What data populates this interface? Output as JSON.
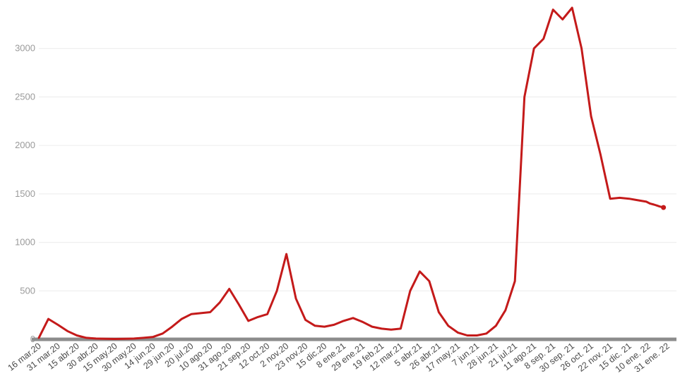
{
  "chart_data": {
    "type": "line",
    "title": "",
    "xlabel": "",
    "ylabel": "",
    "ylim": [
      0,
      3500
    ],
    "yticks": [
      0,
      500,
      1000,
      1500,
      2000,
      2500,
      3000
    ],
    "grid": true,
    "legend": "none",
    "x_tick_labels": [
      "16 mar.20",
      "31 mar.20",
      "15 abr.20",
      "30 abr.20",
      "15 may.20",
      "30 may.20",
      "14 jun.20",
      "29 jun.20",
      "20 jul.20",
      "10 ago.20",
      "31 ago.20",
      "21 sep.20",
      "12 oct.20",
      "2 nov.20",
      "23 nov.20",
      "15 dic.20",
      "8 ene.21",
      "29 ene.21",
      "19 feb.21",
      "12 mar.21",
      "5 abr.21",
      "26 abr.21",
      "17 may.21",
      "7 jun.21",
      "28 jun.21",
      "21 jul.21",
      "11 ago.21",
      "8 sep. 21",
      "30 sep. 21",
      "26 oct. 21",
      "22 nov. 21",
      "15 dic. 21",
      "10 ene. 22",
      "31 ene. 22"
    ],
    "series": [
      {
        "color": "#c41a1a",
        "x": [
          0,
          0.5,
          1,
          1.5,
          2,
          2.5,
          3,
          3.5,
          4,
          4.5,
          5,
          5.5,
          6,
          6.5,
          7,
          7.5,
          8,
          8.5,
          9,
          9.5,
          10,
          10.5,
          11,
          11.5,
          12,
          12.5,
          13,
          13.5,
          14,
          14.5,
          15,
          15.5,
          16,
          16.5,
          17,
          17.5,
          18,
          18.5,
          19,
          19.5,
          20,
          20.5,
          21,
          21.5,
          22,
          22.5,
          23,
          23.5,
          24,
          24.5,
          25,
          25.5,
          26,
          26.5,
          27,
          27.5,
          28,
          28.5,
          29,
          29.5,
          30,
          30.5,
          31,
          31.3,
          31.6,
          31.9,
          32.1,
          32.3,
          32.45,
          32.6,
          32.8,
          33,
          33.3,
          33.6,
          34,
          34.4,
          34.8
        ],
        "values": [
          15,
          210,
          150,
          85,
          40,
          15,
          8,
          5,
          4,
          5,
          8,
          15,
          25,
          60,
          130,
          210,
          260,
          270,
          280,
          380,
          520,
          360,
          190,
          230,
          260,
          500,
          880,
          420,
          200,
          140,
          130,
          150,
          190,
          220,
          180,
          130,
          110,
          100,
          110,
          500,
          700,
          600,
          280,
          140,
          70,
          40,
          40,
          60,
          140,
          300,
          600,
          2500,
          3000,
          3100,
          3400,
          3300,
          3420,
          3000,
          2300,
          1900,
          1450,
          1460,
          1450,
          1440,
          1430,
          1420,
          1400,
          1390,
          1380,
          1370,
          1360,
          1350,
          1340,
          1330,
          1320,
          1310,
          1300
        ]
      }
    ]
  }
}
